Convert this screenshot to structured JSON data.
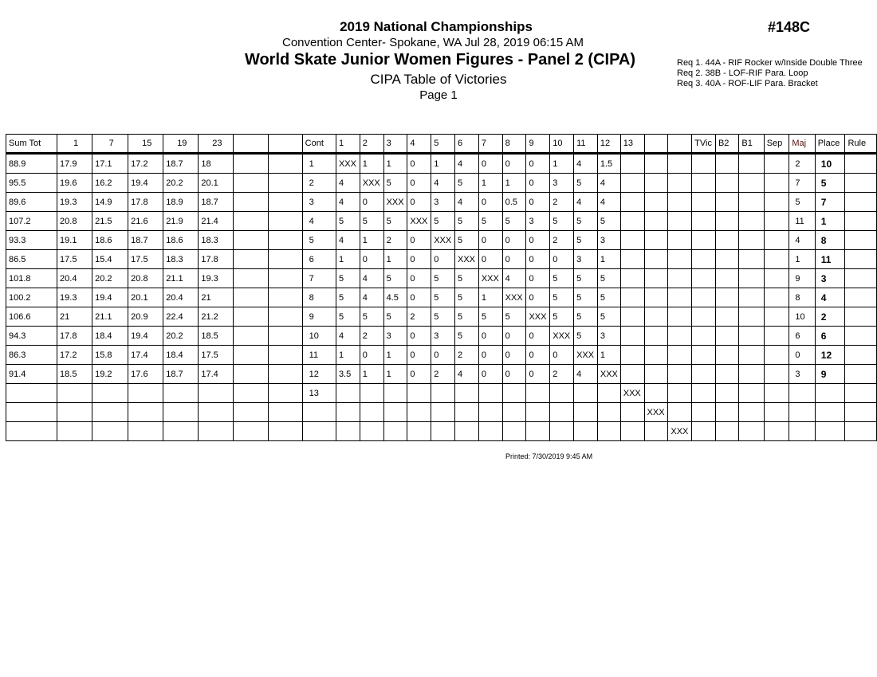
{
  "header": {
    "event_title": "2019 National Championships",
    "venue_line": "Convention Center- Spokane, WA  Jul 28, 2019  06:15 AM",
    "competition": "World Skate Junior Women Figures - Panel 2 (CIPA)",
    "report_title": "CIPA Table of Victories",
    "page": "Page 1",
    "event_number": "#148C",
    "requirements": [
      "Req  1.  44A - RIF Rocker w/Inside Double Three",
      "Req  2.  38B - LOF-RIF Para. Loop",
      "Req  3.  40A - ROF-LIF Para. Bracket"
    ]
  },
  "table": {
    "columns": [
      "Sum Tot",
      "1",
      "7",
      "15",
      "19",
      "23",
      "",
      "",
      "Cont",
      "1",
      "2",
      "3",
      "4",
      "5",
      "6",
      "7",
      "8",
      "9",
      "10",
      "11",
      "12",
      "13",
      "",
      "",
      "TVic",
      "B2",
      "B1",
      "Sep",
      "Maj",
      "Place",
      "Rule"
    ],
    "rows": [
      {
        "sum": "88.9",
        "scores": [
          "17.9",
          "17.1",
          "17.2",
          "18.7",
          "18"
        ],
        "cont": "1",
        "vic": [
          "XXX",
          "1",
          "1",
          "0",
          "1",
          "4",
          "0",
          "0",
          "0",
          "1",
          "4",
          "1.5",
          "",
          "",
          ""
        ],
        "maj": "2",
        "place": "10"
      },
      {
        "sum": "95.5",
        "scores": [
          "19.6",
          "16.2",
          "19.4",
          "20.2",
          "20.1"
        ],
        "cont": "2",
        "vic": [
          "4",
          "XXX",
          "5",
          "0",
          "4",
          "5",
          "1",
          "1",
          "0",
          "3",
          "5",
          "4",
          "",
          "",
          ""
        ],
        "maj": "7",
        "place": "5"
      },
      {
        "sum": "89.6",
        "scores": [
          "19.3",
          "14.9",
          "17.8",
          "18.9",
          "18.7"
        ],
        "cont": "3",
        "vic": [
          "4",
          "0",
          "XXX",
          "0",
          "3",
          "4",
          "0",
          "0.5",
          "0",
          "2",
          "4",
          "4",
          "",
          "",
          ""
        ],
        "maj": "5",
        "place": "7"
      },
      {
        "sum": "107.2",
        "scores": [
          "20.8",
          "21.5",
          "21.6",
          "21.9",
          "21.4"
        ],
        "cont": "4",
        "vic": [
          "5",
          "5",
          "5",
          "XXX",
          "5",
          "5",
          "5",
          "5",
          "3",
          "5",
          "5",
          "5",
          "",
          "",
          ""
        ],
        "maj": "11",
        "place": "1"
      },
      {
        "sum": "93.3",
        "scores": [
          "19.1",
          "18.6",
          "18.7",
          "18.6",
          "18.3"
        ],
        "cont": "5",
        "vic": [
          "4",
          "1",
          "2",
          "0",
          "XXX",
          "5",
          "0",
          "0",
          "0",
          "2",
          "5",
          "3",
          "",
          "",
          ""
        ],
        "maj": "4",
        "place": "8"
      },
      {
        "sum": "86.5",
        "scores": [
          "17.5",
          "15.4",
          "17.5",
          "18.3",
          "17.8"
        ],
        "cont": "6",
        "vic": [
          "1",
          "0",
          "1",
          "0",
          "0",
          "XXX",
          "0",
          "0",
          "0",
          "0",
          "3",
          "1",
          "",
          "",
          ""
        ],
        "maj": "1",
        "place": "11"
      },
      {
        "sum": "101.8",
        "scores": [
          "20.4",
          "20.2",
          "20.8",
          "21.1",
          "19.3"
        ],
        "cont": "7",
        "vic": [
          "5",
          "4",
          "5",
          "0",
          "5",
          "5",
          "XXX",
          "4",
          "0",
          "5",
          "5",
          "5",
          "",
          "",
          ""
        ],
        "maj": "9",
        "place": "3"
      },
      {
        "sum": "100.2",
        "scores": [
          "19.3",
          "19.4",
          "20.1",
          "20.4",
          "21"
        ],
        "cont": "8",
        "vic": [
          "5",
          "4",
          "4.5",
          "0",
          "5",
          "5",
          "1",
          "XXX",
          "0",
          "5",
          "5",
          "5",
          "",
          "",
          ""
        ],
        "maj": "8",
        "place": "4"
      },
      {
        "sum": "106.6",
        "scores": [
          "21",
          "21.1",
          "20.9",
          "22.4",
          "21.2"
        ],
        "cont": "9",
        "vic": [
          "5",
          "5",
          "5",
          "2",
          "5",
          "5",
          "5",
          "5",
          "XXX",
          "5",
          "5",
          "5",
          "",
          "",
          ""
        ],
        "maj": "10",
        "place": "2"
      },
      {
        "sum": "94.3",
        "scores": [
          "17.8",
          "18.4",
          "19.4",
          "20.2",
          "18.5"
        ],
        "cont": "10",
        "vic": [
          "4",
          "2",
          "3",
          "0",
          "3",
          "5",
          "0",
          "0",
          "0",
          "XXX",
          "5",
          "3",
          "",
          "",
          ""
        ],
        "maj": "6",
        "place": "6"
      },
      {
        "sum": "86.3",
        "scores": [
          "17.2",
          "15.8",
          "17.4",
          "18.4",
          "17.5"
        ],
        "cont": "11",
        "vic": [
          "1",
          "0",
          "1",
          "0",
          "0",
          "2",
          "0",
          "0",
          "0",
          "0",
          "XXX",
          "1",
          "",
          "",
          ""
        ],
        "maj": "0",
        "place": "12"
      },
      {
        "sum": "91.4",
        "scores": [
          "18.5",
          "19.2",
          "17.6",
          "18.7",
          "17.4"
        ],
        "cont": "12",
        "vic": [
          "3.5",
          "1",
          "1",
          "0",
          "2",
          "4",
          "0",
          "0",
          "0",
          "2",
          "4",
          "XXX",
          "",
          "",
          ""
        ],
        "maj": "3",
        "place": "9"
      },
      {
        "sum": "",
        "scores": [
          "",
          "",
          "",
          "",
          ""
        ],
        "cont": "13",
        "vic": [
          "",
          "",
          "",
          "",
          "",
          "",
          "",
          "",
          "",
          "",
          "",
          "",
          "XXX",
          "",
          ""
        ],
        "maj": "",
        "place": ""
      },
      {
        "sum": "",
        "scores": [
          "",
          "",
          "",
          "",
          ""
        ],
        "cont": "",
        "vic": [
          "",
          "",
          "",
          "",
          "",
          "",
          "",
          "",
          "",
          "",
          "",
          "",
          "",
          "XXX",
          ""
        ],
        "maj": "",
        "place": ""
      },
      {
        "sum": "",
        "scores": [
          "",
          "",
          "",
          "",
          ""
        ],
        "cont": "",
        "vic": [
          "",
          "",
          "",
          "",
          "",
          "",
          "",
          "",
          "",
          "",
          "",
          "",
          "",
          "",
          "XXX"
        ],
        "maj": "",
        "place": ""
      }
    ]
  },
  "footer": {
    "printed": "Printed:  7/30/2019  9:45 AM"
  }
}
